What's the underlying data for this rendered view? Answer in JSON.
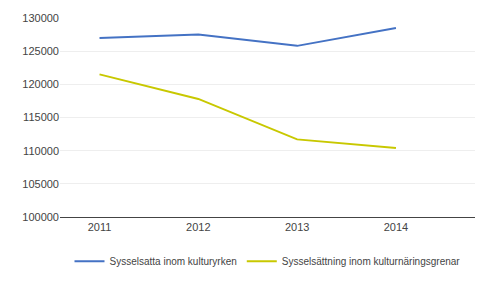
{
  "chart_data": {
    "type": "line",
    "x": [
      2011,
      2012,
      2013,
      2014
    ],
    "series": [
      {
        "name": "Sysselsatta inom kulturyrken",
        "color": "#4472C4",
        "values": [
          127000,
          127500,
          125800,
          128500
        ]
      },
      {
        "name": "Sysselsättning inom kulturnäringsgrenar",
        "color": "#c8c800",
        "values": [
          121500,
          117800,
          111700,
          110400
        ]
      }
    ],
    "xlim": [
      2010.6,
      2014.8
    ],
    "xticks": [
      2011,
      2012,
      2013,
      2014
    ],
    "ylim": [
      100000,
      130000
    ],
    "yticks": [
      100000,
      105000,
      110000,
      115000,
      120000,
      125000,
      130000
    ],
    "grid": "y",
    "legend": "bottom"
  }
}
